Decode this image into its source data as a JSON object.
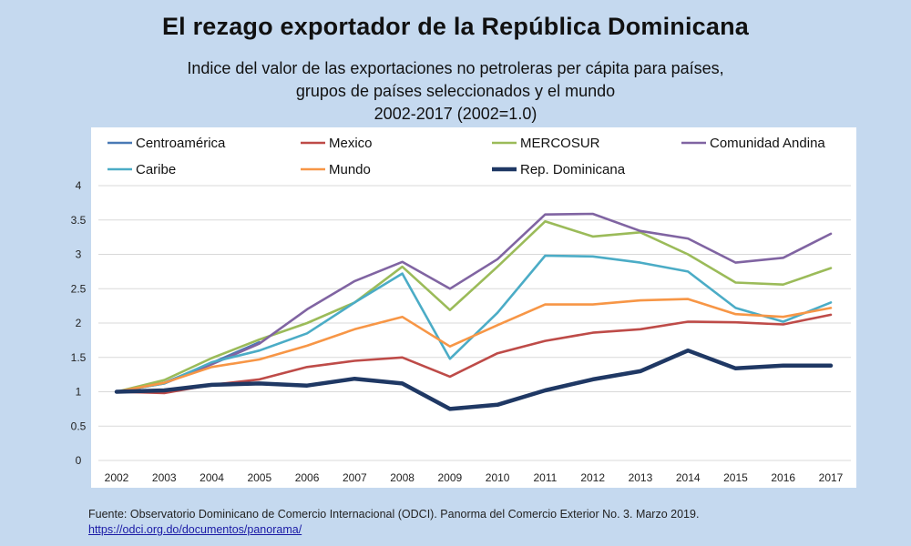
{
  "chart_data": {
    "type": "line",
    "title": "El rezago exportador de la República Dominicana",
    "subtitle_lines": [
      "Indice del valor de las exportaciones no petroleras per cápita para países,",
      "grupos de países seleccionados y el mundo",
      "2002-2017 (2002=1.0)"
    ],
    "x": [
      "2002",
      "2003",
      "2004",
      "2005",
      "2006",
      "2007",
      "2008",
      "2009",
      "2010",
      "2011",
      "2012",
      "2013",
      "2014",
      "2015",
      "2016",
      "2017"
    ],
    "ylim": [
      0,
      4
    ],
    "yticks": [
      "0",
      "0.5",
      "1",
      "1.5",
      "2",
      "2.5",
      "3",
      "3.5",
      "4"
    ],
    "grid": true,
    "legend_position": "top",
    "series": [
      {
        "name": "Centroamérica",
        "color": "#4a7ab5",
        "values": [
          1.0,
          1.13,
          1.42,
          1.72,
          null,
          null,
          null,
          null,
          null,
          null,
          null,
          null,
          null,
          null,
          null,
          null
        ]
      },
      {
        "name": "Mexico",
        "color": "#be4b48",
        "values": [
          1.0,
          0.98,
          1.1,
          1.18,
          1.36,
          1.45,
          1.5,
          1.22,
          1.56,
          1.74,
          1.86,
          1.91,
          2.02,
          2.01,
          1.98,
          2.12
        ]
      },
      {
        "name": "MERCOSUR",
        "color": "#9bbb59",
        "values": [
          1.0,
          1.17,
          1.49,
          1.76,
          2.0,
          2.3,
          2.82,
          2.19,
          2.82,
          3.48,
          3.26,
          3.32,
          3.0,
          2.59,
          2.56,
          2.8
        ]
      },
      {
        "name": "Comunidad Andina",
        "color": "#8064a2",
        "values": [
          1.0,
          1.12,
          1.4,
          1.7,
          2.2,
          2.61,
          2.89,
          2.5,
          2.93,
          3.58,
          3.59,
          3.34,
          3.23,
          2.88,
          2.95,
          3.3
        ]
      },
      {
        "name": "Caribe",
        "color": "#4bacc6",
        "values": [
          1.0,
          1.12,
          1.43,
          1.6,
          1.85,
          2.3,
          2.72,
          1.48,
          2.15,
          2.98,
          2.97,
          2.88,
          2.75,
          2.22,
          2.02,
          2.3
        ]
      },
      {
        "name": "Mundo",
        "color": "#f79646",
        "values": [
          1.0,
          1.13,
          1.36,
          1.47,
          1.67,
          1.91,
          2.09,
          1.66,
          1.97,
          2.27,
          2.27,
          2.33,
          2.35,
          2.13,
          2.09,
          2.22
        ]
      },
      {
        "name": "Rep. Dominicana",
        "color": "#1f3864",
        "values": [
          1.0,
          1.02,
          1.1,
          1.12,
          1.09,
          1.19,
          1.12,
          0.75,
          0.81,
          1.02,
          1.18,
          1.3,
          1.6,
          1.34,
          1.38,
          1.38
        ]
      }
    ]
  },
  "source": {
    "text": "Fuente: Observatorio Dominicano de Comercio Internacional (ODCI). Panorma del Comercio Exterior No. 3. Marzo 2019.",
    "link": "https://odci.org.do/documentos/panorama/"
  }
}
